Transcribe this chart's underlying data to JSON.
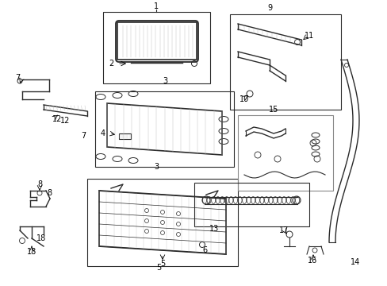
{
  "background_color": "#ffffff",
  "line_color": "#2a2a2a",
  "gray_color": "#888888",
  "light_gray": "#bbbbbb",
  "figsize": [
    4.89,
    3.6
  ],
  "dpi": 100,
  "xlim": [
    0,
    489
  ],
  "ylim": [
    0,
    360
  ]
}
